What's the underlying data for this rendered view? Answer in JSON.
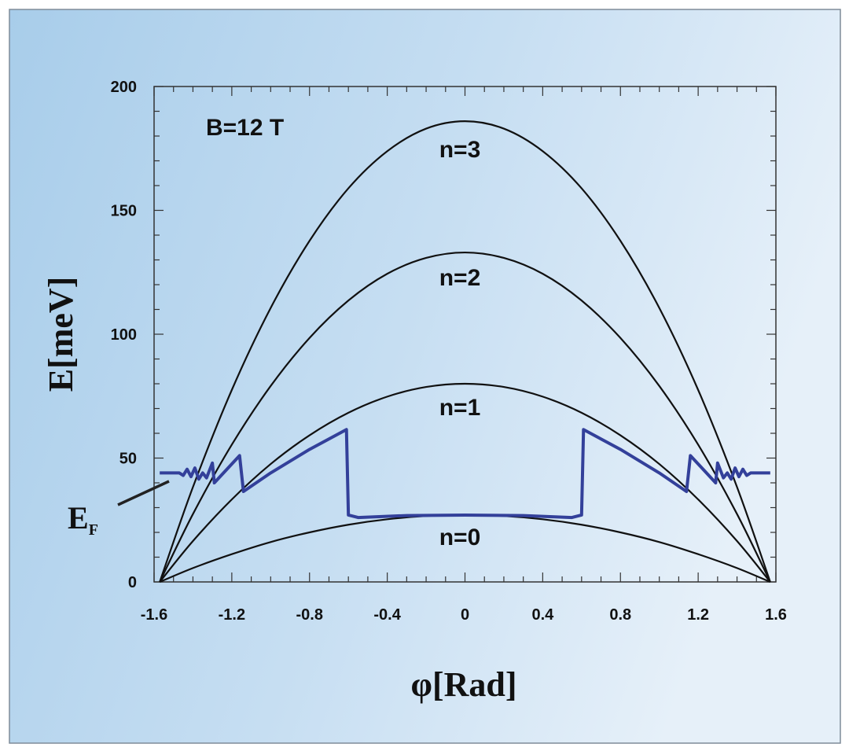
{
  "chart_data": {
    "type": "line",
    "title": "",
    "xlabel": "φ[Rad]",
    "ylabel": "E[meV]",
    "xlim": [
      -1.6,
      1.6
    ],
    "ylim": [
      0,
      200
    ],
    "xticks": [
      -1.6,
      -1.2,
      -0.8,
      -0.4,
      0,
      0.4,
      0.8,
      1.2,
      1.6
    ],
    "xtick_labels": [
      "-1.6",
      "-1.2",
      "-0.8",
      "-0.4",
      "0",
      "0.4",
      "0.8",
      "1.2",
      "1.6"
    ],
    "yticks": [
      0,
      50,
      100,
      150,
      200
    ],
    "ytick_labels": [
      "0",
      "50",
      "100",
      "150",
      "200"
    ],
    "grid": false,
    "annotations": {
      "field": "B=12 T",
      "fermi_label": "E",
      "fermi_subscript": "F"
    },
    "x": [
      -1.5708,
      -1.4,
      -1.2,
      -1.0,
      -0.8,
      -0.6,
      -0.4,
      -0.2,
      0,
      0.2,
      0.4,
      0.6,
      0.8,
      1.0,
      1.2,
      1.4,
      1.5708
    ],
    "series": [
      {
        "name": "n=0",
        "color": "#111111",
        "values": [
          0,
          5.6,
          11.2,
          16.1,
          20.0,
          23.1,
          25.3,
          26.6,
          27,
          26.6,
          25.3,
          23.1,
          20.0,
          16.1,
          11.2,
          5.6,
          0
        ]
      },
      {
        "name": "n=1",
        "color": "#111111",
        "values": [
          0,
          16.5,
          33.3,
          47.6,
          59.2,
          68.3,
          74.8,
          78.7,
          80,
          78.7,
          74.8,
          68.3,
          59.2,
          47.6,
          33.3,
          16.5,
          0
        ]
      },
      {
        "name": "n=2",
        "color": "#111111",
        "values": [
          0,
          27.4,
          55.4,
          79.1,
          98.5,
          113.6,
          124.4,
          130.8,
          133,
          130.8,
          124.4,
          113.6,
          98.5,
          79.1,
          55.4,
          27.4,
          0
        ]
      },
      {
        "name": "n=3",
        "color": "#111111",
        "values": [
          0,
          38.3,
          77.5,
          110.6,
          137.7,
          158.9,
          173.9,
          183.0,
          186,
          183.0,
          173.9,
          158.9,
          137.7,
          110.6,
          77.5,
          38.3,
          0
        ]
      }
    ],
    "fermi_energy": {
      "name": "E_F",
      "color": "#33409a",
      "points": [
        [
          -1.571,
          44
        ],
        [
          -1.47,
          44
        ],
        [
          -1.45,
          43
        ],
        [
          -1.43,
          45.5
        ],
        [
          -1.41,
          42.5
        ],
        [
          -1.39,
          46
        ],
        [
          -1.37,
          41.5
        ],
        [
          -1.35,
          44
        ],
        [
          -1.33,
          42
        ],
        [
          -1.3,
          48
        ],
        [
          -1.29,
          40
        ],
        [
          -1.16,
          51
        ],
        [
          -1.14,
          36.5
        ],
        [
          -1.0,
          44
        ],
        [
          -0.8,
          53.5
        ],
        [
          -0.61,
          61.5
        ],
        [
          -0.6,
          27
        ],
        [
          -0.55,
          26
        ],
        [
          -0.3,
          26.8
        ],
        [
          0,
          27
        ],
        [
          0.3,
          26.8
        ],
        [
          0.55,
          26
        ],
        [
          0.6,
          27
        ],
        [
          0.61,
          61.5
        ],
        [
          0.8,
          53.5
        ],
        [
          1.0,
          44
        ],
        [
          1.14,
          36.5
        ],
        [
          1.16,
          51
        ],
        [
          1.29,
          40
        ],
        [
          1.3,
          48
        ],
        [
          1.33,
          42
        ],
        [
          1.35,
          44
        ],
        [
          1.37,
          41.5
        ],
        [
          1.39,
          46
        ],
        [
          1.41,
          42.5
        ],
        [
          1.43,
          45.5
        ],
        [
          1.45,
          43
        ],
        [
          1.47,
          44
        ],
        [
          1.571,
          44
        ]
      ]
    }
  }
}
